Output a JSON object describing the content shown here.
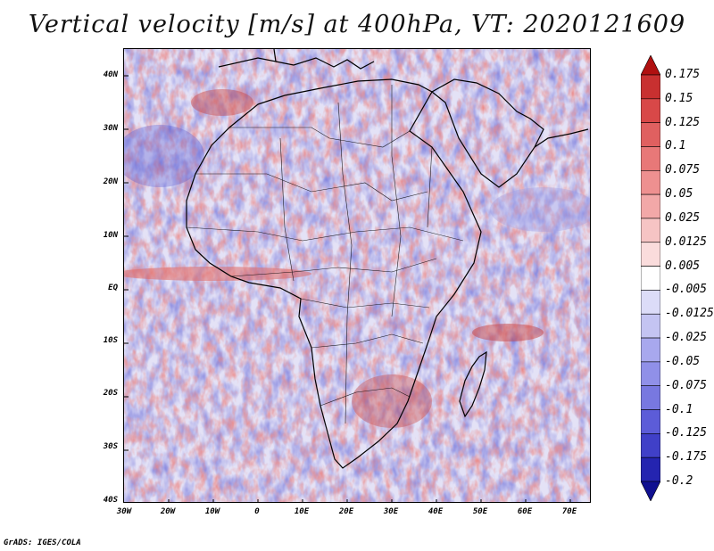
{
  "title": "Vertical velocity [m/s] at 400hPa, VT: 2020121609",
  "credit": "GrADS: IGES/COLA",
  "map": {
    "lat_labels": [
      "40N",
      "30N",
      "20N",
      "10N",
      "EQ",
      "10S",
      "20S",
      "30S",
      "40S"
    ],
    "lon_labels": [
      "30W",
      "20W",
      "10W",
      "0",
      "10E",
      "20E",
      "30E",
      "40E",
      "50E",
      "60E",
      "70E"
    ],
    "lat_range": [
      -40,
      45
    ],
    "lon_range": [
      -30,
      75
    ]
  },
  "colorbar": {
    "labels": [
      "0.175",
      "0.15",
      "0.125",
      "0.1",
      "0.075",
      "0.05",
      "0.025",
      "0.0125",
      "0.005",
      "-0.005",
      "-0.0125",
      "-0.025",
      "-0.05",
      "-0.075",
      "-0.1",
      "-0.125",
      "-0.175",
      "-0.2"
    ],
    "colors": [
      "#b01010",
      "#c83030",
      "#d84848",
      "#e06060",
      "#e87878",
      "#ee9090",
      "#f2a8a8",
      "#f6c4c4",
      "#fadcdc",
      "#ffffff",
      "#dcdcf8",
      "#c4c4f2",
      "#a8a8ee",
      "#9090e8",
      "#7878e0",
      "#5c5cd8",
      "#4040c8",
      "#2424b0",
      "#101090"
    ]
  }
}
